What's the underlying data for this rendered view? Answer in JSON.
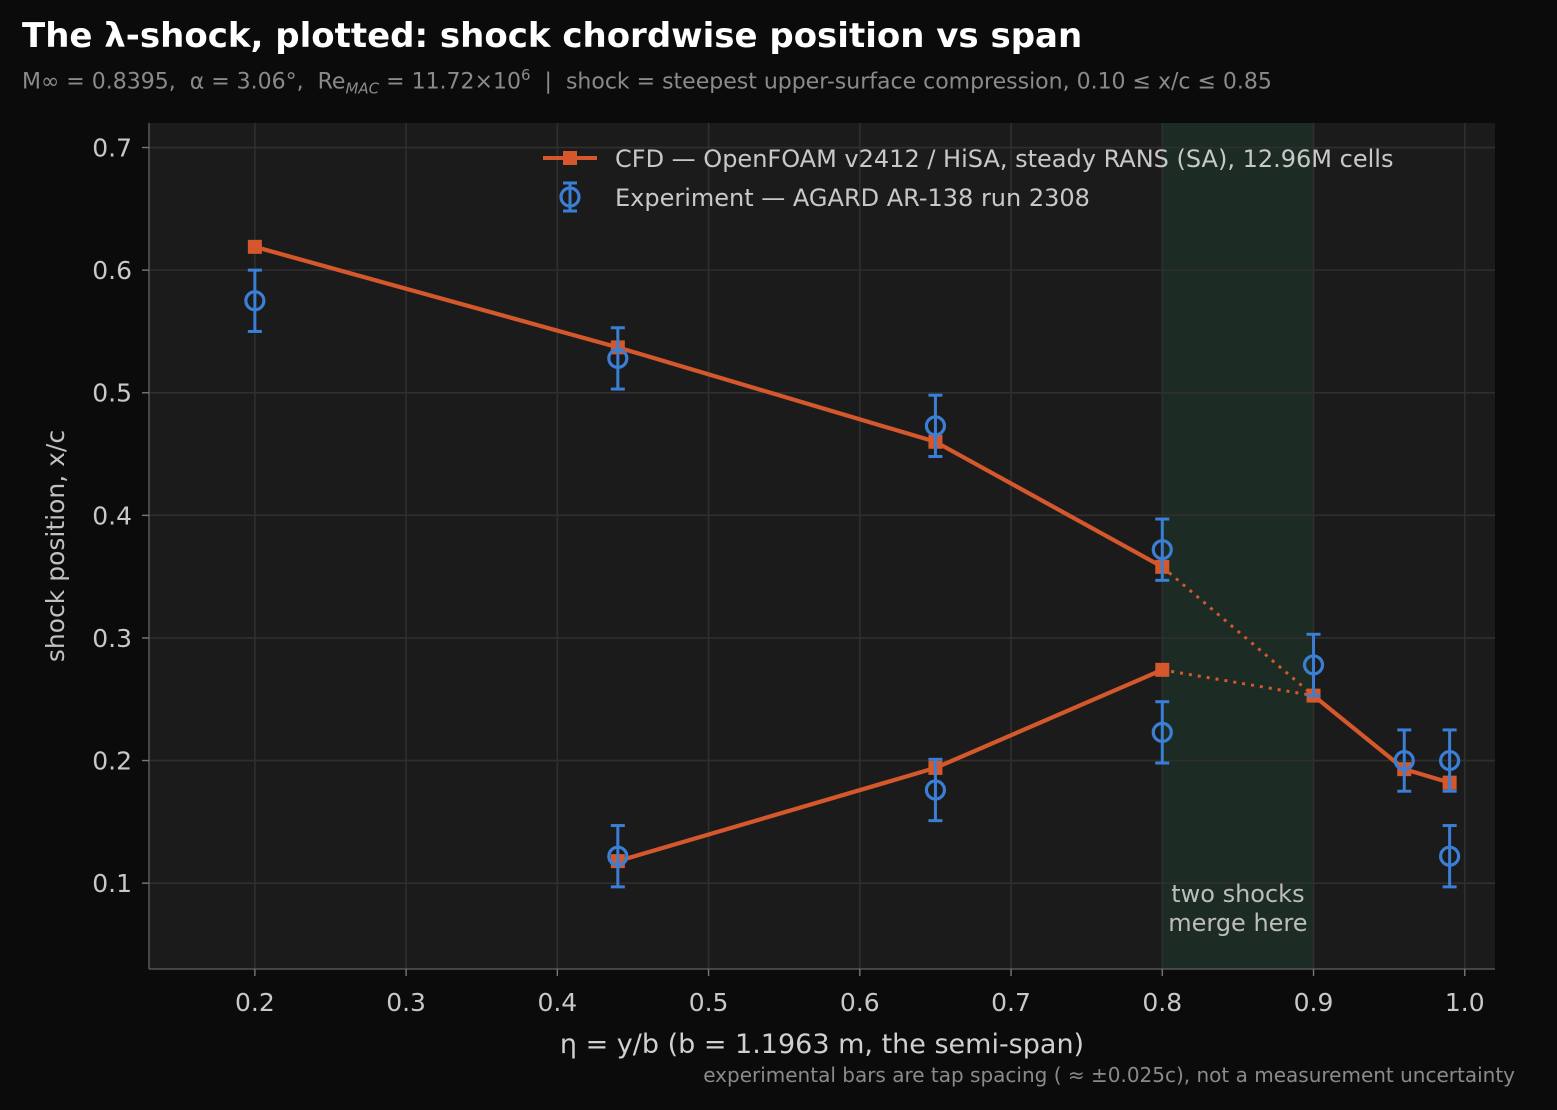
{
  "title": "The λ-shock, plotted: shock chordwise position vs span",
  "subtitle": {
    "mach": "M∞ = 0.8395,",
    "alpha": "α = 3.06°,",
    "re_prefix": "Re",
    "re_sub": "MAC",
    "re_value": "= 11.72×10",
    "re_exp": "6",
    "separator": "|",
    "definition": "shock = steepest upper-surface compression, 0.10 ≤ x/c ≤ 0.85"
  },
  "footnote": "experimental bars are tap spacing ( ≈ ±0.025c), not a measurement uncertainty",
  "colors": {
    "cfd": "#d4582b",
    "experiment": "#3a7fd5",
    "merge_band": "#1c2b24",
    "plot_bg": "#1b1b1b",
    "page_bg": "#0b0b0b"
  },
  "chart_data": {
    "type": "line",
    "xlabel": "η = y/b   (b = 1.1963 m, the semi-span)",
    "ylabel": "shock position, x/c",
    "xlim": [
      0.13,
      1.02
    ],
    "ylim": [
      0.03,
      0.72
    ],
    "xticks": [
      0.2,
      0.3,
      0.4,
      0.5,
      0.6,
      0.7,
      0.8,
      0.9,
      1.0
    ],
    "xtick_labels": [
      "0.2",
      "0.3",
      "0.4",
      "0.5",
      "0.6",
      "0.7",
      "0.8",
      "0.9",
      "1.0"
    ],
    "yticks": [
      0.1,
      0.2,
      0.3,
      0.4,
      0.5,
      0.6,
      0.7
    ],
    "ytick_labels": [
      "0.1",
      "0.2",
      "0.3",
      "0.4",
      "0.5",
      "0.6",
      "0.7"
    ],
    "grid": true,
    "legend_position": "top-right",
    "legend": [
      {
        "label": "CFD — OpenFOAM v2412 / HiSA, steady RANS (SA), 12.96M cells",
        "marker": "square-line"
      },
      {
        "label": "Experiment — AGARD AR-138 run 2308",
        "marker": "circle-errorbar"
      }
    ],
    "shaded_region": {
      "x": [
        0.8,
        0.9
      ],
      "annotation": [
        "two shocks",
        "merge here"
      ]
    },
    "series": [
      {
        "name": "CFD — OpenFOAM v2412 / HiSA, steady RANS (SA), 12.96M cells",
        "segments": [
          {
            "style": "solid",
            "x": [
              0.2,
              0.44,
              0.65,
              0.8
            ],
            "y": [
              0.619,
              0.537,
              0.46,
              0.358
            ]
          },
          {
            "style": "solid",
            "x": [
              0.44,
              0.65,
              0.8
            ],
            "y": [
              0.118,
              0.194,
              0.274
            ]
          },
          {
            "style": "dotted",
            "x": [
              0.8,
              0.9
            ],
            "y": [
              0.358,
              0.253
            ]
          },
          {
            "style": "dotted",
            "x": [
              0.8,
              0.9
            ],
            "y": [
              0.274,
              0.253
            ]
          },
          {
            "style": "solid",
            "x": [
              0.9,
              0.96,
              0.99
            ],
            "y": [
              0.253,
              0.193,
              0.182
            ]
          }
        ],
        "markers": {
          "x": [
            0.2,
            0.44,
            0.65,
            0.8,
            0.44,
            0.65,
            0.8,
            0.9,
            0.96,
            0.99
          ],
          "y": [
            0.619,
            0.537,
            0.46,
            0.358,
            0.118,
            0.194,
            0.274,
            0.253,
            0.193,
            0.182
          ]
        }
      },
      {
        "name": "Experiment — AGARD AR-138 run 2308",
        "x": [
          0.2,
          0.44,
          0.65,
          0.8,
          0.44,
          0.65,
          0.8,
          0.9,
          0.96,
          0.99,
          0.99
        ],
        "y": [
          0.575,
          0.528,
          0.473,
          0.372,
          0.122,
          0.176,
          0.223,
          0.278,
          0.2,
          0.2,
          0.122
        ],
        "error": 0.025
      }
    ]
  }
}
